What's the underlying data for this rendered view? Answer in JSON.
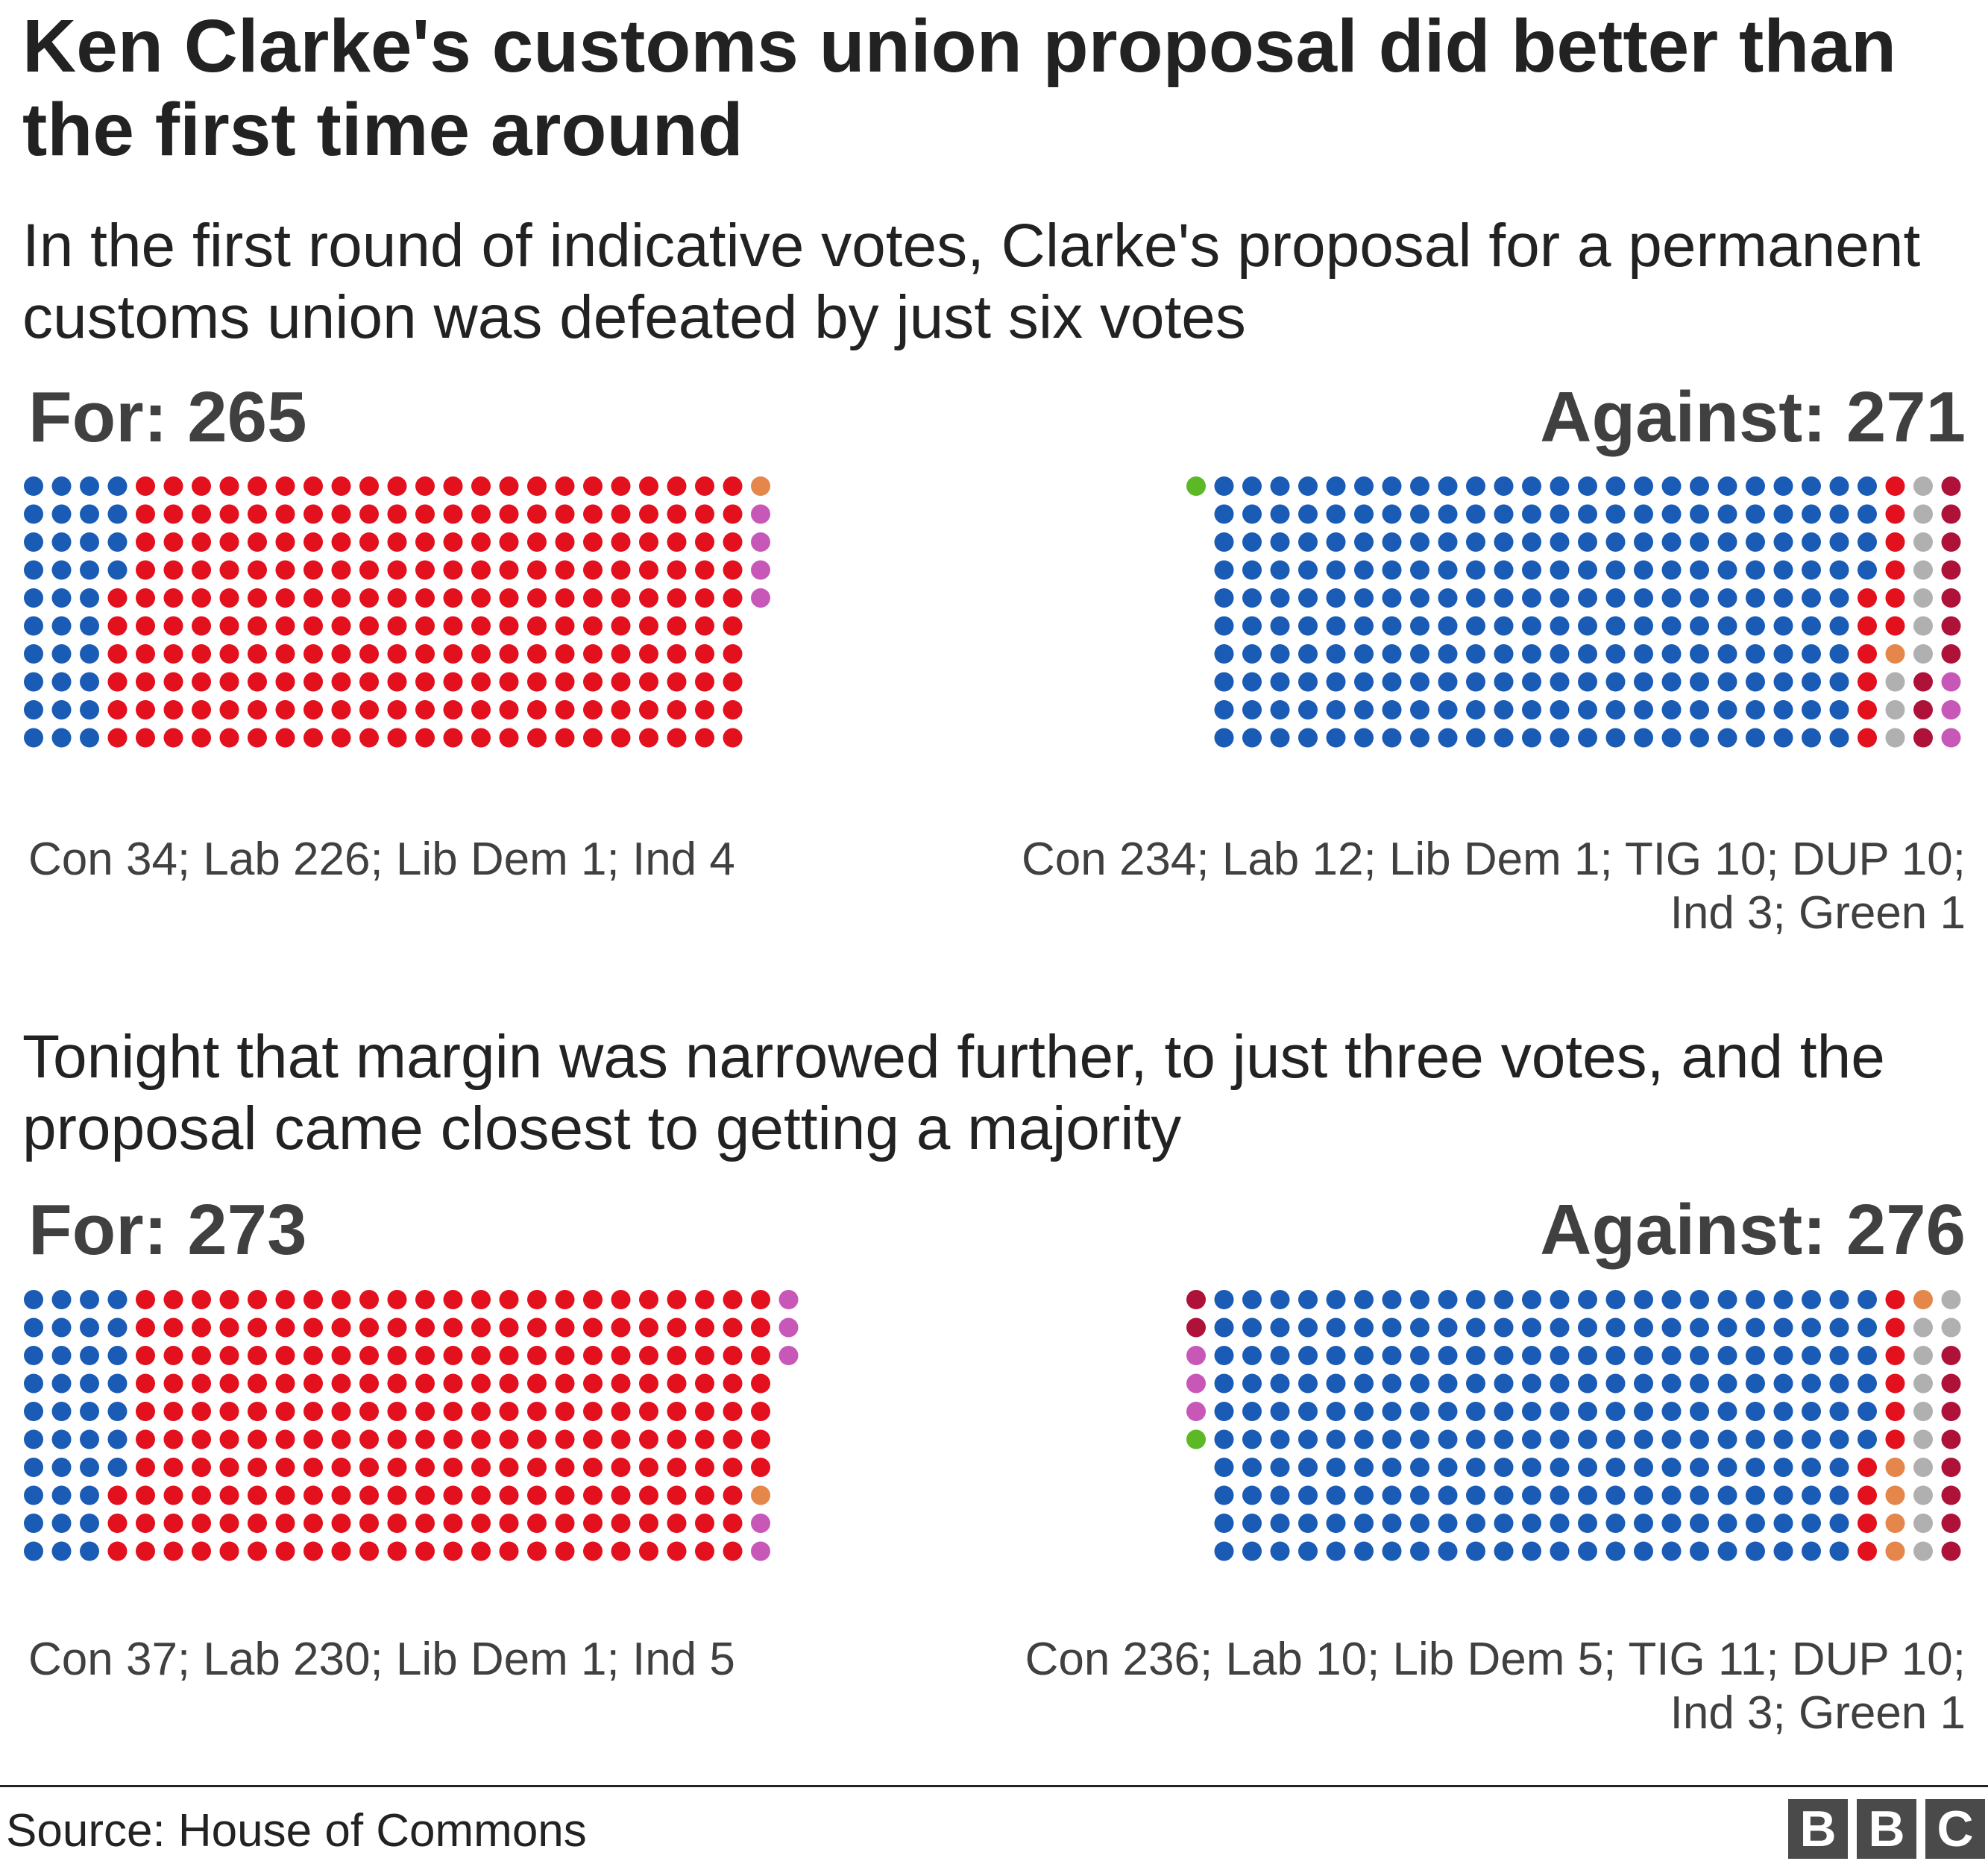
{
  "title": "Ken Clarke's customs union proposal did better than the first time around",
  "subtitle_first": "In the first round of indicative votes, Clarke's proposal for a permanent customs union was defeated by just six votes",
  "subtitle_second": "Tonight that margin was narrowed further, to just three votes, and the proposal came closest to getting a majority",
  "source": "Source: House of Commons",
  "logo": [
    "B",
    "B",
    "C"
  ],
  "colors": {
    "Con": "#1a5cb5",
    "Lab": "#e3101e",
    "Lib Dem": "#e5864a",
    "Ind": "#c858b8",
    "TIG": "#b0b0b0",
    "DUP": "#ae1238",
    "Green": "#5cb824"
  },
  "chart_data": [
    {
      "type": "waffle",
      "round": "first",
      "side": "For",
      "label": "For: 265",
      "total": 265,
      "breakdown_text": "Con 34; Lab 226; Lib Dem 1; Ind 4",
      "series": [
        {
          "name": "Con",
          "value": 34
        },
        {
          "name": "Lab",
          "value": 226
        },
        {
          "name": "Lib Dem",
          "value": 1
        },
        {
          "name": "Ind",
          "value": 4
        }
      ]
    },
    {
      "type": "waffle",
      "round": "first",
      "side": "Against",
      "label": "Against: 271",
      "total": 271,
      "breakdown_text": "Con 234; Lab 12; Lib Dem 1; TIG 10; DUP 10; Ind 3; Green 1",
      "series": [
        {
          "name": "Con",
          "value": 234
        },
        {
          "name": "Lab",
          "value": 12
        },
        {
          "name": "Lib Dem",
          "value": 1
        },
        {
          "name": "TIG",
          "value": 10
        },
        {
          "name": "DUP",
          "value": 10
        },
        {
          "name": "Ind",
          "value": 3
        },
        {
          "name": "Green",
          "value": 1
        }
      ]
    },
    {
      "type": "waffle",
      "round": "second",
      "side": "For",
      "label": "For: 273",
      "total": 273,
      "breakdown_text": "Con 37; Lab 230; Lib Dem 1; Ind 5",
      "series": [
        {
          "name": "Con",
          "value": 37
        },
        {
          "name": "Lab",
          "value": 230
        },
        {
          "name": "Lib Dem",
          "value": 1
        },
        {
          "name": "Ind",
          "value": 5
        }
      ]
    },
    {
      "type": "waffle",
      "round": "second",
      "side": "Against",
      "label": "Against: 276",
      "total": 276,
      "breakdown_text": "Con 236; Lab 10; Lib Dem 5; TIG 11; DUP 10; Ind 3; Green 1",
      "series": [
        {
          "name": "Con",
          "value": 236
        },
        {
          "name": "Lab",
          "value": 10
        },
        {
          "name": "Lib Dem",
          "value": 5
        },
        {
          "name": "TIG",
          "value": 11
        },
        {
          "name": "DUP",
          "value": 10
        },
        {
          "name": "Ind",
          "value": 3
        },
        {
          "name": "Green",
          "value": 1
        }
      ]
    }
  ]
}
